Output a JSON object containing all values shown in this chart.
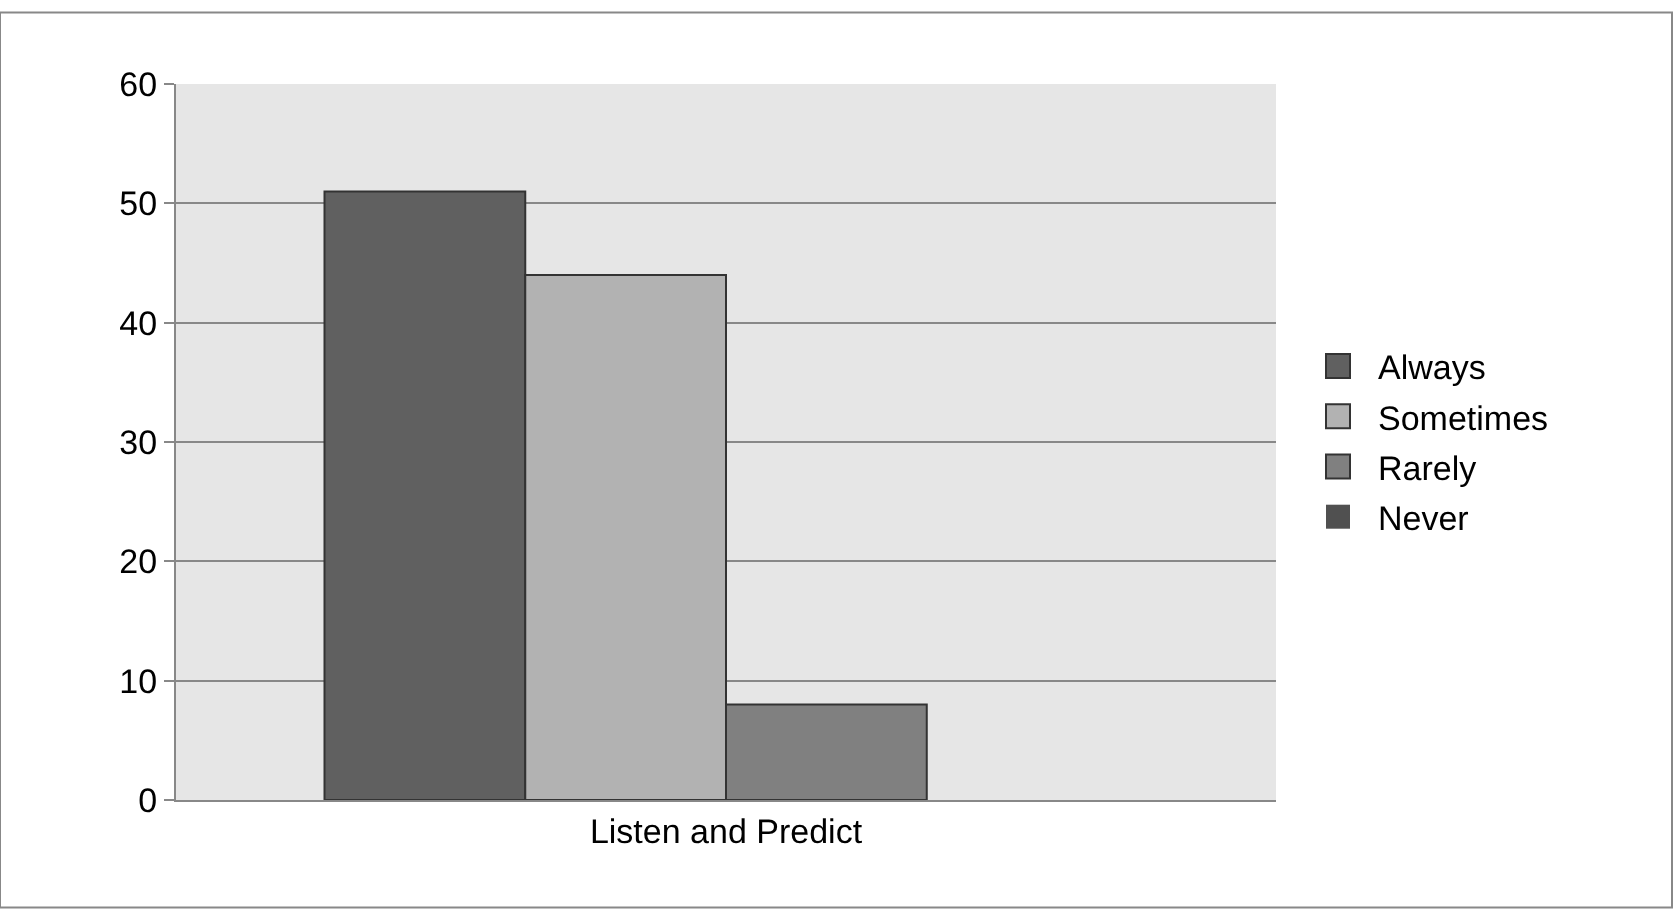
{
  "chart_data": {
    "type": "bar",
    "categories": [
      "Listen and Predict"
    ],
    "series": [
      {
        "name": "Always",
        "color": "#606060",
        "values": [
          51
        ]
      },
      {
        "name": "Sometimes",
        "color": "#b2b2b2",
        "values": [
          44
        ]
      },
      {
        "name": "Rarely",
        "color": "#808080",
        "values": [
          8
        ]
      },
      {
        "name": "Never",
        "color": "#505050",
        "values": [
          0
        ]
      }
    ],
    "ylim": [
      0,
      60
    ],
    "yticks": [
      0,
      10,
      20,
      30,
      40,
      50,
      60
    ],
    "grid": "y",
    "legend": "right"
  }
}
